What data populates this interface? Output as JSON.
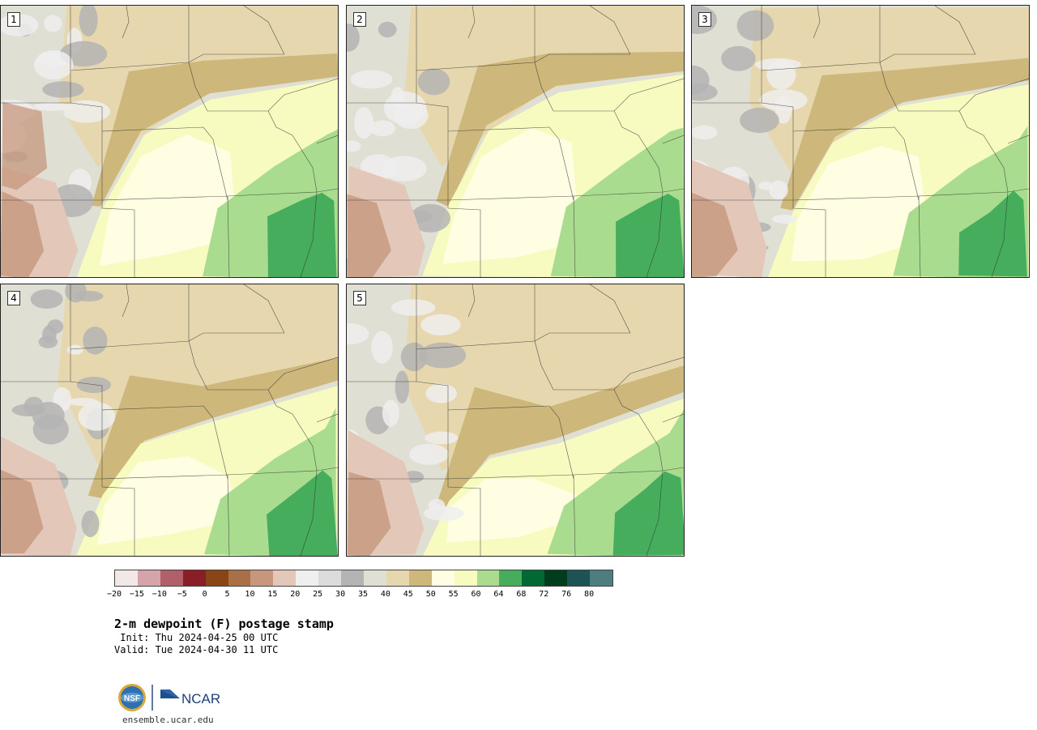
{
  "panels": [
    {
      "label": "1",
      "variant": 0
    },
    {
      "label": "2",
      "variant": 1
    },
    {
      "label": "3",
      "variant": 2
    },
    {
      "label": "4",
      "variant": 3
    },
    {
      "label": "5",
      "variant": 4
    }
  ],
  "colorbar": {
    "colors": [
      "#f3e8e8",
      "#d5a4aa",
      "#b1606a",
      "#8a1e27",
      "#8a4516",
      "#a97048",
      "#c6977d",
      "#e3c7b8",
      "#efefef",
      "#dcdcdc",
      "#b4b4b4",
      "#e0dfd3",
      "#e6d7ae",
      "#cdb77a",
      "#fffde2",
      "#f7fbbf",
      "#a9dc8e",
      "#45ad5b",
      "#006a32",
      "#003c1d",
      "#1c5354",
      "#4f7c7e"
    ],
    "ticks": [
      "−20",
      "−15",
      "−10",
      "−5",
      "0",
      "5",
      "10",
      "15",
      "20",
      "25",
      "30",
      "35",
      "40",
      "45",
      "50",
      "55",
      "60",
      "64",
      "68",
      "72",
      "76",
      "80"
    ]
  },
  "title": "2-m dewpoint (F) postage stamp",
  "init": " Init: Thu 2024-04-25 00 UTC",
  "valid": "Valid: Tue 2024-04-30 11 UTC",
  "logos": {
    "nsf": "NSF",
    "ncar": "NCAR"
  },
  "url": "ensemble.ucar.edu"
}
